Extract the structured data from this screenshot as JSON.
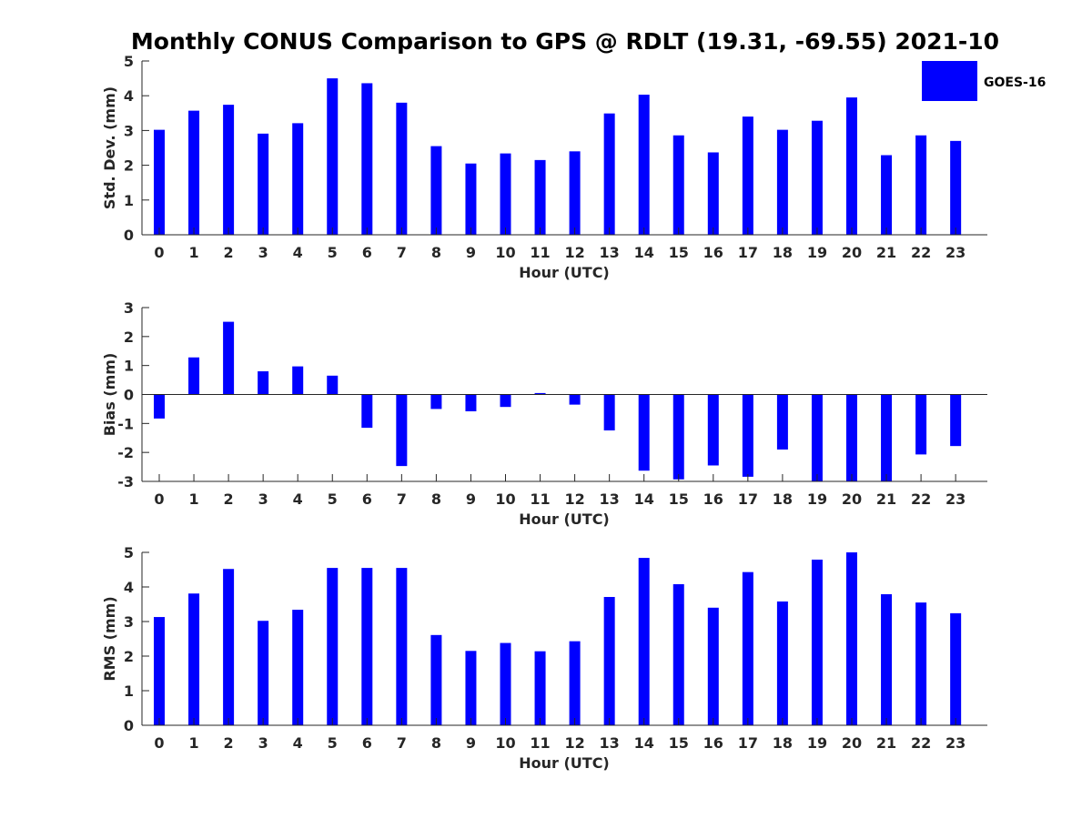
{
  "title": "Monthly CONUS Comparison to GPS @ RDLT (19.31, -69.55) 2021-10",
  "legend": {
    "label": "GOES-16",
    "color": "#0000ff",
    "placement": "top-right"
  },
  "chart_data": [
    {
      "type": "bar",
      "xlabel": "Hour (UTC)",
      "ylabel": "Std. Dev. (mm)",
      "ylim": [
        0,
        5
      ],
      "yticks": [
        "0",
        "1",
        "2",
        "3",
        "4",
        "5"
      ],
      "categories": [
        "0",
        "1",
        "2",
        "3",
        "4",
        "5",
        "6",
        "7",
        "8",
        "9",
        "10",
        "11",
        "12",
        "13",
        "14",
        "15",
        "16",
        "17",
        "18",
        "19",
        "20",
        "21",
        "22",
        "23"
      ],
      "series": [
        {
          "name": "GOES-16",
          "color": "#0000ff",
          "values": [
            3.02,
            3.57,
            3.74,
            2.91,
            3.21,
            4.5,
            4.36,
            3.8,
            2.55,
            2.05,
            2.34,
            2.15,
            2.4,
            3.49,
            4.03,
            2.86,
            2.37,
            3.4,
            3.02,
            3.28,
            3.95,
            2.29,
            2.86,
            2.7
          ]
        }
      ],
      "grid": false
    },
    {
      "type": "bar",
      "xlabel": "Hour (UTC)",
      "ylabel": "Bias (mm)",
      "ylim": [
        -3,
        3
      ],
      "yticks": [
        "-3",
        "-2",
        "-1",
        "0",
        "1",
        "2",
        "3"
      ],
      "categories": [
        "0",
        "1",
        "2",
        "3",
        "4",
        "5",
        "6",
        "7",
        "8",
        "9",
        "10",
        "11",
        "12",
        "13",
        "14",
        "15",
        "16",
        "17",
        "18",
        "19",
        "20",
        "21",
        "22",
        "23"
      ],
      "series": [
        {
          "name": "GOES-16",
          "color": "#0000ff",
          "values": [
            -0.83,
            1.28,
            2.51,
            0.8,
            0.97,
            0.65,
            -1.15,
            -2.47,
            -0.5,
            -0.58,
            -0.43,
            0.05,
            -0.35,
            -1.24,
            -2.63,
            -2.93,
            -2.45,
            -2.84,
            -1.9,
            -3.0,
            -3.0,
            -3.0,
            -2.07,
            -1.78
          ]
        }
      ],
      "grid": false
    },
    {
      "type": "bar",
      "xlabel": "Hour (UTC)",
      "ylabel": "RMS (mm)",
      "ylim": [
        0,
        5
      ],
      "yticks": [
        "0",
        "1",
        "2",
        "3",
        "4",
        "5"
      ],
      "categories": [
        "0",
        "1",
        "2",
        "3",
        "4",
        "5",
        "6",
        "7",
        "8",
        "9",
        "10",
        "11",
        "12",
        "13",
        "14",
        "15",
        "16",
        "17",
        "18",
        "19",
        "20",
        "21",
        "22",
        "23"
      ],
      "series": [
        {
          "name": "GOES-16",
          "color": "#0000ff",
          "values": [
            3.13,
            3.81,
            4.52,
            3.02,
            3.34,
            4.55,
            4.55,
            4.55,
            2.61,
            2.15,
            2.38,
            2.14,
            2.43,
            3.71,
            4.84,
            4.08,
            3.4,
            4.43,
            3.58,
            4.79,
            5.0,
            3.79,
            3.55,
            3.24
          ]
        }
      ],
      "grid": false
    }
  ]
}
